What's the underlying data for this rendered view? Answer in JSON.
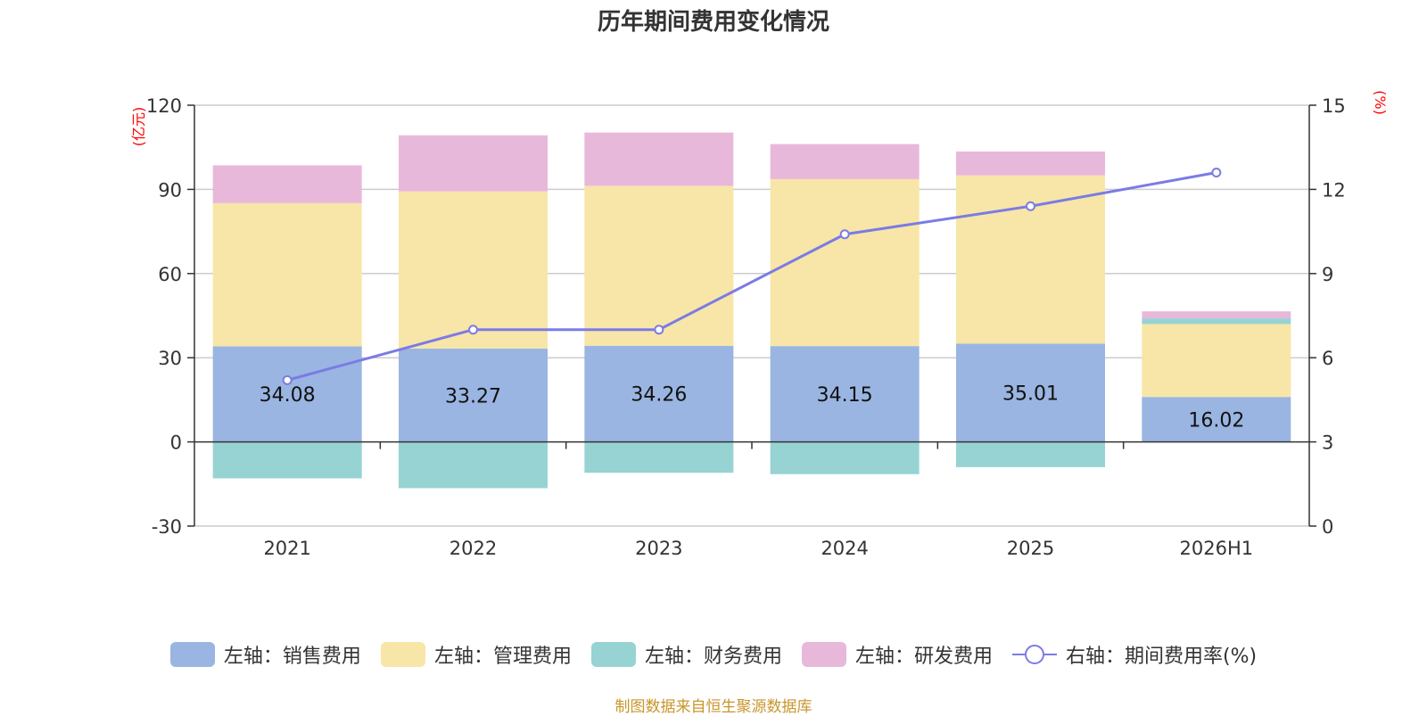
{
  "chart_data": {
    "type": "bar",
    "title": "历年期间费用变化情况",
    "categories": [
      "2021",
      "2022",
      "2023",
      "2024",
      "2025",
      "2026H1"
    ],
    "left_axis": {
      "unit": "(亿元)",
      "ylim": [
        -30,
        120
      ],
      "ticks": [
        "120",
        "90",
        "60",
        "30",
        "0",
        "-30"
      ]
    },
    "right_axis": {
      "unit": "(%)",
      "ylim": [
        0,
        15
      ],
      "ticks": [
        "15",
        "12",
        "9",
        "6",
        "3",
        "0"
      ]
    },
    "series": [
      {
        "name": "左轴：销售费用",
        "axis": "left",
        "type": "bar",
        "color": "#9ab5e1",
        "values": [
          34.08,
          33.27,
          34.26,
          34.15,
          35.01,
          16.02
        ],
        "labels": [
          "34.08",
          "33.27",
          "34.26",
          "34.15",
          "35.01",
          "16.02"
        ]
      },
      {
        "name": "左轴：管理费用",
        "axis": "left",
        "type": "bar",
        "color": "#f7e6a7",
        "values": [
          51.0,
          56.0,
          57.0,
          59.5,
          60.0,
          26.0
        ]
      },
      {
        "name": "左轴：财务费用",
        "axis": "left",
        "type": "bar",
        "color": "#97d3d3",
        "values": [
          -13.0,
          -16.5,
          -11.0,
          -11.5,
          -9.0,
          2.0
        ]
      },
      {
        "name": "左轴：研发费用",
        "axis": "left",
        "type": "bar",
        "color": "#e8b8da",
        "values": [
          13.5,
          20.0,
          19.0,
          12.5,
          8.5,
          2.5
        ]
      },
      {
        "name": "右轴：期间费用率(%)",
        "axis": "right",
        "type": "line",
        "color": "#7b7be6",
        "values": [
          5.2,
          7.0,
          7.0,
          10.4,
          11.4,
          12.6
        ]
      }
    ],
    "grid": true,
    "legend_position": "bottom"
  },
  "source": "制图数据来自恒生聚源数据库"
}
